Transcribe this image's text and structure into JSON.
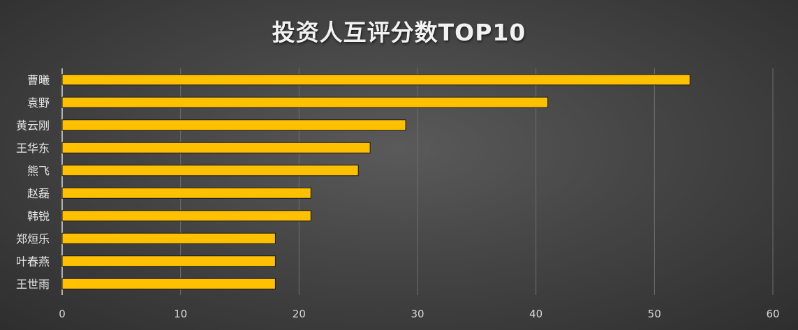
{
  "chart_data": {
    "type": "bar",
    "orientation": "horizontal",
    "title": "投资人互评分数TOP10",
    "categories": [
      "曹曦",
      "袁野",
      "黄云刚",
      "王华东",
      "熊飞",
      "赵磊",
      "韩锐",
      "郑烜乐",
      "叶春燕",
      "王世雨"
    ],
    "values": [
      53,
      41,
      29,
      26,
      25,
      21,
      21,
      18,
      18,
      18
    ],
    "xlim": [
      0,
      60
    ],
    "xticks": [
      0,
      10,
      20,
      30,
      40,
      50,
      60
    ],
    "grid": true,
    "legend": "none",
    "colors": {
      "bar": "#FFC000",
      "grid": "#6e6e6e",
      "axis": "#d9d9d9"
    }
  }
}
